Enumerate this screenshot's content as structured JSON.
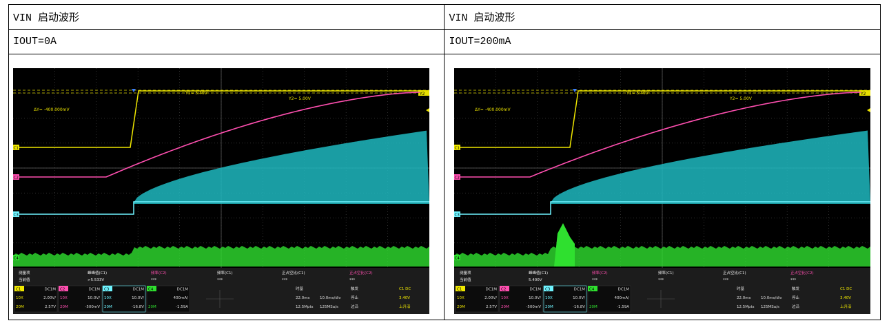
{
  "table": {
    "rows": [
      [
        "VIN 启动波形",
        "VIN 启动波形"
      ],
      [
        "IOUT=0A",
        "IOUT=200mA"
      ]
    ]
  },
  "scopes": [
    {
      "cursor_y1": "Y1= 5.40V",
      "cursor_y2": "Y2= 5.00V",
      "delta": "ΔY= -400.000mV",
      "y2_tag": "Y2",
      "measure_header": [
        "测量项",
        "峰峰值(C1)",
        "频率(C2)",
        "频率(C1)",
        "正占空比(C1)",
        "正占空比(C2)"
      ],
      "measure_values": [
        "当前值",
        ">5.533V",
        "***",
        "***",
        "***",
        "***"
      ],
      "channels": [
        {
          "name": "C1",
          "coupling": "DC1M",
          "probe": "10X",
          "scale": "2.00V/",
          "bw": "20M",
          "offset": "2.57V"
        },
        {
          "name": "C2",
          "coupling": "DC1M",
          "probe": "10X",
          "scale": "10.0V/",
          "bw": "20M",
          "offset": "-500mV"
        },
        {
          "name": "C3",
          "coupling": "DC1M",
          "probe": "10X",
          "scale": "10.0V/",
          "bw": "20M",
          "offset": "-16.8V"
        },
        {
          "name": "C4",
          "coupling": "DC1M",
          "scale": "400mA/",
          "bw": "20M",
          "offset": "-1.59A"
        }
      ],
      "timebase": [
        "时基",
        "22.0ms",
        "10.0ms/div",
        "12.5Mpts",
        "125MSa/s"
      ],
      "trigger": [
        "触发",
        "C1 DC",
        "停止",
        "3.40V",
        "边沿",
        "上升沿"
      ]
    },
    {
      "cursor_y1": "Y1= 5.40V",
      "cursor_y2": "Y2= 5.00V",
      "delta": "ΔY= -400.000mV",
      "y2_tag": "Y2",
      "measure_header": [
        "测量项",
        "峰峰值(C1)",
        "频率(C2)",
        "频率(C1)",
        "正占空比(C1)",
        "正占空比(C2)"
      ],
      "measure_values": [
        "当前值",
        "5.400V",
        "***",
        "***",
        "***",
        "***"
      ],
      "channels": [
        {
          "name": "C1",
          "coupling": "DC1M",
          "probe": "10X",
          "scale": "2.00V/",
          "bw": "20M",
          "offset": "2.57V"
        },
        {
          "name": "C2",
          "coupling": "DC1M",
          "probe": "10X",
          "scale": "10.0V/",
          "bw": "20M",
          "offset": "-500mV"
        },
        {
          "name": "C3",
          "coupling": "DC1M",
          "probe": "10X",
          "scale": "10.0V/",
          "bw": "20M",
          "offset": "-16.8V"
        },
        {
          "name": "C4",
          "coupling": "DC1M",
          "scale": "400mA/",
          "bw": "20M",
          "offset": "-1.59A"
        }
      ],
      "timebase": [
        "时基",
        "22.0ms",
        "10.0ms/div",
        "12.5Mpts",
        "125MSa/s"
      ],
      "trigger": [
        "触发",
        "C1 DC",
        "停止",
        "3.40V",
        "边沿",
        "上升沿"
      ]
    }
  ]
}
